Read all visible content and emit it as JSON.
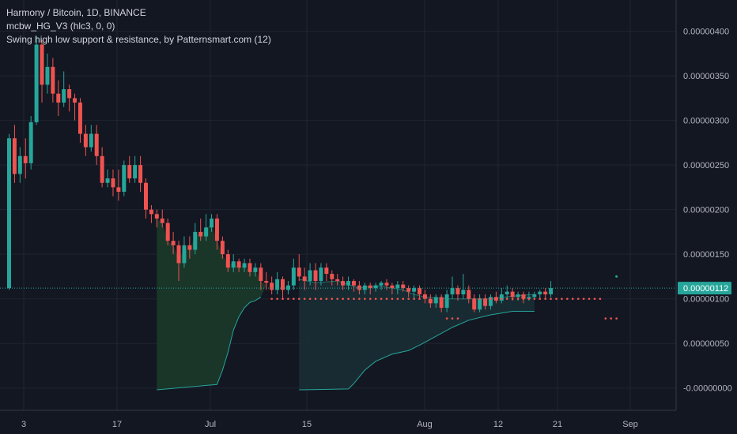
{
  "legend": {
    "symbol": "Harmony / Bitcoin, 1D, BINANCE",
    "indicator1": "mcbw_HG_V3 (hlc3, 0, 0)",
    "indicator2": "Swing high low support & resistance, by Patternsmart.com (12)"
  },
  "colors": {
    "background": "#131722",
    "grid": "#1f2430",
    "up": "#26a69a",
    "down": "#ef5350",
    "fill_green": "#1b3a2a",
    "fill_teal": "#1a2e34",
    "line": "#26a69a",
    "dot_red": "#ef5350",
    "price_label": "#26a69a"
  },
  "chart_data": {
    "type": "candlestick",
    "x_ticks": [
      "3",
      "17",
      "Jul",
      "15",
      "Aug",
      "12",
      "21",
      "Sep"
    ],
    "y_ticks": [
      "0.00000400",
      "0.00000350",
      "0.00000300",
      "0.00000250",
      "0.00000200",
      "0.00000150",
      "0.00000100",
      "0.00000050",
      "-0.00000000"
    ],
    "ylim": [
      -2.5e-07,
      4.35e-06
    ],
    "current_price": "0.00000112",
    "candles": [
      [
        0,
        1.12,
        2.8,
        2.85,
        1.1
      ],
      [
        1,
        2.8,
        2.4,
        2.95,
        2.3
      ],
      [
        2,
        2.4,
        2.6,
        2.7,
        2.3
      ],
      [
        3,
        2.6,
        2.52,
        2.8,
        2.35
      ],
      [
        4,
        2.52,
        2.98,
        3.05,
        2.45
      ],
      [
        5,
        2.98,
        3.85,
        3.95,
        2.95
      ],
      [
        6,
        3.85,
        3.4,
        3.9,
        3.2
      ],
      [
        7,
        3.4,
        3.6,
        3.75,
        3.3
      ],
      [
        8,
        3.6,
        3.3,
        3.7,
        3.2
      ],
      [
        9,
        3.3,
        3.2,
        3.45,
        3.05
      ],
      [
        10,
        3.2,
        3.35,
        3.55,
        3.15
      ],
      [
        11,
        3.35,
        3.25,
        3.4,
        3.1
      ],
      [
        12,
        3.25,
        3.2,
        3.3,
        3.0
      ],
      [
        13,
        3.2,
        2.85,
        3.25,
        2.75
      ],
      [
        14,
        2.85,
        2.7,
        2.95,
        2.6
      ],
      [
        15,
        2.7,
        2.85,
        2.95,
        2.65
      ],
      [
        16,
        2.85,
        2.6,
        2.95,
        2.5
      ],
      [
        17,
        2.6,
        2.3,
        2.7,
        2.25
      ],
      [
        18,
        2.3,
        2.35,
        2.45,
        2.25
      ],
      [
        19,
        2.35,
        2.25,
        2.45,
        2.15
      ],
      [
        20,
        2.25,
        2.2,
        2.45,
        2.1
      ],
      [
        21,
        2.2,
        2.5,
        2.55,
        2.15
      ],
      [
        22,
        2.5,
        2.35,
        2.6,
        2.3
      ],
      [
        23,
        2.35,
        2.5,
        2.6,
        2.3
      ],
      [
        24,
        2.5,
        2.3,
        2.6,
        2.2
      ],
      [
        25,
        2.3,
        2.0,
        2.35,
        1.9
      ],
      [
        26,
        2.0,
        1.95,
        2.05,
        1.85
      ],
      [
        27,
        1.95,
        1.9,
        2.0,
        1.8
      ],
      [
        28,
        1.9,
        1.85,
        2.0,
        1.8
      ],
      [
        29,
        1.85,
        1.65,
        1.9,
        1.6
      ],
      [
        30,
        1.65,
        1.6,
        1.75,
        1.5
      ],
      [
        31,
        1.6,
        1.4,
        1.65,
        1.2
      ],
      [
        32,
        1.4,
        1.6,
        1.7,
        1.35
      ],
      [
        33,
        1.6,
        1.55,
        1.7,
        1.45
      ],
      [
        34,
        1.55,
        1.75,
        1.85,
        1.5
      ],
      [
        35,
        1.75,
        1.7,
        1.9,
        1.65
      ],
      [
        36,
        1.7,
        1.8,
        1.95,
        1.65
      ],
      [
        37,
        1.8,
        1.9,
        1.95,
        1.75
      ],
      [
        38,
        1.9,
        1.65,
        1.95,
        1.55
      ],
      [
        39,
        1.65,
        1.5,
        1.7,
        1.45
      ],
      [
        40,
        1.5,
        1.35,
        1.55,
        1.3
      ],
      [
        41,
        1.35,
        1.42,
        1.5,
        1.3
      ],
      [
        42,
        1.42,
        1.35,
        1.45,
        1.3
      ],
      [
        43,
        1.35,
        1.4,
        1.45,
        1.3
      ],
      [
        44,
        1.4,
        1.3,
        1.45,
        1.25
      ],
      [
        45,
        1.3,
        1.35,
        1.4,
        1.25
      ],
      [
        46,
        1.35,
        1.2,
        1.4,
        1.1
      ],
      [
        47,
        1.2,
        1.18,
        1.3,
        1.1
      ],
      [
        48,
        1.18,
        1.1,
        1.25,
        1.05
      ],
      [
        49,
        1.1,
        1.22,
        1.3,
        1.05
      ],
      [
        50,
        1.22,
        1.1,
        1.25,
        1.0
      ],
      [
        51,
        1.1,
        1.15,
        1.2,
        1.05
      ],
      [
        52,
        1.15,
        1.35,
        1.45,
        1.1
      ],
      [
        53,
        1.35,
        1.25,
        1.5,
        1.2
      ],
      [
        54,
        1.25,
        1.2,
        1.35,
        1.1
      ],
      [
        55,
        1.2,
        1.32,
        1.4,
        1.15
      ],
      [
        56,
        1.32,
        1.2,
        1.4,
        1.1
      ],
      [
        57,
        1.2,
        1.35,
        1.4,
        1.15
      ],
      [
        58,
        1.35,
        1.28,
        1.4,
        1.2
      ],
      [
        59,
        1.28,
        1.22,
        1.32,
        1.15
      ],
      [
        60,
        1.22,
        1.2,
        1.28,
        1.15
      ],
      [
        61,
        1.2,
        1.15,
        1.25,
        1.1
      ],
      [
        62,
        1.15,
        1.2,
        1.25,
        1.1
      ],
      [
        63,
        1.2,
        1.15,
        1.22,
        1.08
      ],
      [
        64,
        1.15,
        1.1,
        1.2,
        1.05
      ],
      [
        65,
        1.1,
        1.15,
        1.18,
        1.05
      ],
      [
        66,
        1.15,
        1.12,
        1.18,
        1.05
      ],
      [
        67,
        1.12,
        1.15,
        1.18,
        1.08
      ],
      [
        68,
        1.15,
        1.18,
        1.2,
        1.1
      ],
      [
        69,
        1.18,
        1.15,
        1.22,
        1.1
      ],
      [
        70,
        1.15,
        1.12,
        1.18,
        1.05
      ],
      [
        71,
        1.12,
        1.16,
        1.2,
        1.05
      ],
      [
        72,
        1.16,
        1.12,
        1.2,
        1.08
      ],
      [
        73,
        1.12,
        1.08,
        1.15,
        1.02
      ],
      [
        74,
        1.08,
        1.12,
        1.15,
        1.0
      ],
      [
        75,
        1.12,
        1.05,
        1.15,
        1.0
      ],
      [
        76,
        1.05,
        1.0,
        1.1,
        0.95
      ],
      [
        77,
        1.0,
        0.95,
        1.05,
        0.9
      ],
      [
        78,
        0.95,
        1.02,
        1.05,
        0.9
      ],
      [
        79,
        1.02,
        0.9,
        1.05,
        0.85
      ],
      [
        80,
        0.9,
        1.05,
        1.1,
        0.85
      ],
      [
        81,
        1.05,
        1.12,
        1.25,
        1.0
      ],
      [
        82,
        1.12,
        1.05,
        1.15,
        0.98
      ],
      [
        83,
        1.05,
        1.1,
        1.28,
        1.0
      ],
      [
        84,
        1.1,
        1.0,
        1.15,
        0.95
      ],
      [
        85,
        1.0,
        0.88,
        1.05,
        0.85
      ],
      [
        86,
        0.88,
        1.0,
        1.05,
        0.85
      ],
      [
        87,
        1.0,
        0.92,
        1.05,
        0.88
      ],
      [
        88,
        0.92,
        1.02,
        1.05,
        0.88
      ],
      [
        89,
        1.02,
        0.98,
        1.08,
        0.95
      ],
      [
        90,
        0.98,
        1.05,
        1.12,
        0.95
      ],
      [
        91,
        1.05,
        1.08,
        1.15,
        1.0
      ],
      [
        92,
        1.08,
        1.02,
        1.12,
        0.98
      ],
      [
        93,
        1.02,
        1.05,
        1.08,
        0.98
      ],
      [
        94,
        1.05,
        1.0,
        1.08,
        0.95
      ],
      [
        95,
        1.0,
        1.02,
        1.08,
        0.98
      ],
      [
        96,
        1.02,
        1.05,
        1.08,
        1.0
      ],
      [
        97,
        1.05,
        1.08,
        1.1,
        1.0
      ],
      [
        98,
        1.08,
        1.05,
        1.12,
        1.0
      ],
      [
        99,
        1.05,
        1.12,
        1.2,
        1.02
      ]
    ],
    "dots": [
      [
        48,
        1.0
      ],
      [
        49,
        1.0
      ],
      [
        50,
        1.0
      ],
      [
        51,
        1.0
      ],
      [
        52,
        1.0
      ],
      [
        53,
        1.0
      ],
      [
        54,
        1.0
      ],
      [
        55,
        1.0
      ],
      [
        56,
        1.0
      ],
      [
        57,
        1.0
      ],
      [
        58,
        1.0
      ],
      [
        59,
        1.0
      ],
      [
        60,
        1.0
      ],
      [
        61,
        1.0
      ],
      [
        62,
        1.0
      ],
      [
        63,
        1.0
      ],
      [
        64,
        1.0
      ],
      [
        65,
        1.0
      ],
      [
        66,
        1.0
      ],
      [
        67,
        1.0
      ],
      [
        68,
        1.0
      ],
      [
        69,
        1.0
      ],
      [
        70,
        1.0
      ],
      [
        71,
        1.0
      ],
      [
        72,
        1.0
      ],
      [
        73,
        1.0
      ],
      [
        74,
        1.0
      ],
      [
        75,
        1.0
      ],
      [
        80,
        0.78
      ],
      [
        81,
        0.78
      ],
      [
        82,
        0.78
      ],
      [
        85,
        1.0
      ],
      [
        86,
        1.0
      ],
      [
        87,
        1.0
      ],
      [
        88,
        1.0
      ],
      [
        89,
        1.0
      ],
      [
        90,
        1.0
      ],
      [
        91,
        1.0
      ],
      [
        92,
        1.0
      ],
      [
        93,
        1.0
      ],
      [
        94,
        1.0
      ],
      [
        95,
        1.0
      ],
      [
        96,
        1.0
      ],
      [
        97,
        1.0
      ],
      [
        98,
        1.0
      ],
      [
        99,
        1.0
      ],
      [
        100,
        1.0
      ],
      [
        101,
        1.0
      ],
      [
        102,
        1.0
      ],
      [
        103,
        1.0
      ],
      [
        104,
        1.0
      ],
      [
        105,
        1.0
      ],
      [
        106,
        1.0
      ],
      [
        107,
        1.0
      ],
      [
        108,
        1.0
      ],
      [
        109,
        0.78
      ],
      [
        110,
        0.78
      ],
      [
        111,
        0.78
      ]
    ],
    "teal_dot": [
      111,
      1.25
    ],
    "band1": {
      "x_start": 27,
      "x_end": 40,
      "upper": [
        [
          27,
          1.9
        ],
        [
          28,
          1.85
        ],
        [
          29,
          1.65
        ],
        [
          30,
          1.6
        ],
        [
          31,
          1.45
        ],
        [
          32,
          1.55
        ],
        [
          33,
          1.55
        ],
        [
          34,
          1.72
        ],
        [
          35,
          1.72
        ],
        [
          36,
          1.78
        ],
        [
          37,
          1.85
        ],
        [
          38,
          1.65
        ],
        [
          39,
          1.5
        ],
        [
          40,
          1.38
        ]
      ],
      "lower": [
        [
          27,
          -0.02
        ],
        [
          38,
          0.04
        ],
        [
          39,
          0.2
        ],
        [
          40,
          0.4
        ],
        [
          41,
          0.65
        ],
        [
          42,
          0.8
        ],
        [
          43,
          0.9
        ],
        [
          44,
          0.96
        ],
        [
          45,
          0.98
        ],
        [
          46,
          1.02
        ]
      ],
      "top_line": [
        [
          27,
          1.9
        ],
        [
          28,
          1.85
        ],
        [
          29,
          1.65
        ],
        [
          30,
          1.6
        ],
        [
          31,
          1.45
        ],
        [
          32,
          1.55
        ],
        [
          33,
          1.55
        ],
        [
          34,
          1.72
        ],
        [
          35,
          1.72
        ],
        [
          36,
          1.78
        ],
        [
          37,
          1.85
        ],
        [
          38,
          1.65
        ],
        [
          39,
          1.5
        ],
        [
          40,
          1.38
        ],
        [
          41,
          1.4
        ],
        [
          42,
          1.35
        ],
        [
          43,
          1.38
        ],
        [
          44,
          1.3
        ],
        [
          45,
          1.32
        ],
        [
          46,
          1.2
        ],
        [
          47,
          1.15
        ]
      ]
    },
    "band2": {
      "upper": [
        [
          53,
          1.22
        ],
        [
          56,
          1.18
        ],
        [
          60,
          1.2
        ],
        [
          64,
          1.12
        ],
        [
          67,
          1.15
        ],
        [
          70,
          1.12
        ],
        [
          72,
          1.1
        ],
        [
          74,
          1.05
        ],
        [
          76,
          1.02
        ],
        [
          80,
          1.0
        ],
        [
          84,
          1.0
        ],
        [
          88,
          1.0
        ],
        [
          92,
          1.03
        ],
        [
          96,
          1.05
        ]
      ],
      "lower": [
        [
          53,
          -0.02
        ],
        [
          62,
          -0.01
        ],
        [
          63,
          0.05
        ],
        [
          65,
          0.2
        ],
        [
          67,
          0.3
        ],
        [
          70,
          0.38
        ],
        [
          73,
          0.42
        ],
        [
          75,
          0.48
        ],
        [
          78,
          0.58
        ],
        [
          81,
          0.68
        ],
        [
          84,
          0.76
        ],
        [
          88,
          0.82
        ],
        [
          92,
          0.86
        ],
        [
          96,
          0.86
        ]
      ]
    }
  }
}
